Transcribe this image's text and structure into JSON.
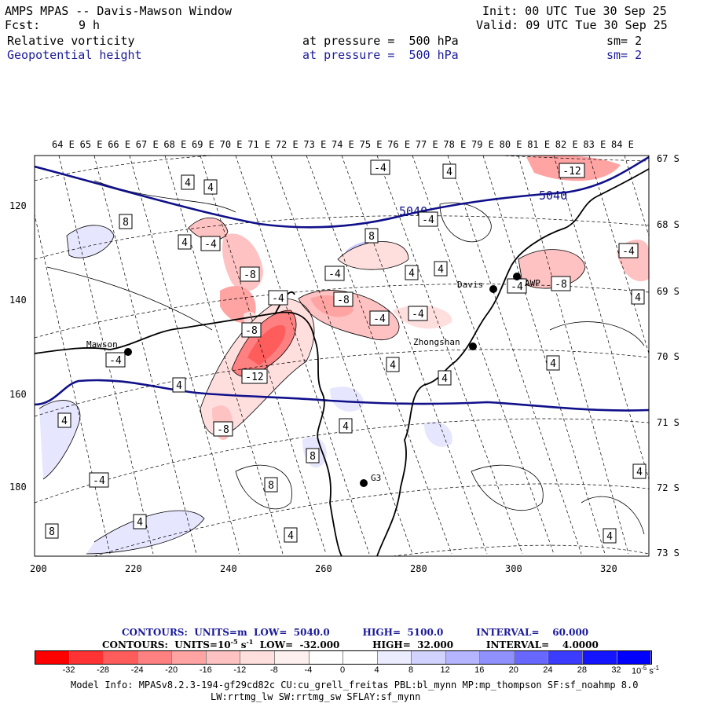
{
  "header": {
    "title": "AMPS MPAS -- Davis-Mawson Window",
    "init": "Init: 00 UTC Tue 30 Sep 25",
    "fcst_label": "Fcst:",
    "fcst_value": "9 h",
    "valid": "Valid: 09 UTC Tue 30 Sep 25",
    "field1": {
      "name": "Relative vorticity",
      "pressure": "at pressure =  500 hPa",
      "sm": "sm= 2"
    },
    "field2": {
      "name": "Geopotential height",
      "pressure": "at pressure =  500 hPa",
      "sm": "sm= 2"
    }
  },
  "map": {
    "top_ticks": [
      "64 E",
      "65 E",
      "66 E",
      "67 E",
      "68 E",
      "69 E",
      "70 E",
      "71 E",
      "72 E",
      "73 E",
      "74 E",
      "75 E",
      "76 E",
      "77 E",
      "78 E",
      "79 E",
      "80 E",
      "81 E",
      "82 E",
      "83 E",
      "84 E"
    ],
    "right_ticks": [
      "67 S",
      "68 S",
      "69 S",
      "70 S",
      "71 S",
      "72 S",
      "73 S"
    ],
    "left_ticks": [
      "120",
      "140",
      "160",
      "180"
    ],
    "bottom_ticks": [
      "200",
      "220",
      "240",
      "260",
      "280",
      "300",
      "320"
    ],
    "stations": [
      {
        "name": "Mawson"
      },
      {
        "name": "Davis"
      },
      {
        "name": "AWP"
      },
      {
        "name": "Zhongshan"
      },
      {
        "name": "G3"
      }
    ],
    "height_labels": [
      "5040",
      "5040"
    ],
    "vort_labels": [
      "-4",
      "4",
      "4",
      "4",
      "-12",
      "8",
      "4",
      "-4",
      "-4",
      "8",
      "-4",
      "4",
      "4",
      "-4",
      "-8",
      "-8",
      "-4",
      "-8",
      "-4",
      "-8",
      "-4",
      "-4",
      "-4",
      "4",
      "4",
      "-12",
      "4",
      "4",
      "4",
      "-8",
      "4",
      "8",
      "-4",
      "8",
      "4",
      "4",
      "8",
      "4",
      "4",
      "4"
    ]
  },
  "footer": {
    "contours1": "CONTOURS:  UNITS=m  LOW=  5040.0          HIGH=  5100.0          INTERVAL=    60.000",
    "contours2_a": "CONTOURS:  UNITS=10",
    "contours2_exp": "-5",
    "contours2_b": " s",
    "contours2_exp2": "-1",
    "contours2_c": "  LOW=  -32.000          HIGH=  32.000          INTERVAL=    4.0000",
    "colorbar": {
      "colors": [
        "#ff0000",
        "#ff3333",
        "#ff5c5c",
        "#ff8080",
        "#ffa3a3",
        "#ffc2c2",
        "#ffdede",
        "#fff0f0",
        "#ffffff",
        "#ffffff",
        "#ececff",
        "#d2d2ff",
        "#b4b4ff",
        "#9090ff",
        "#6868ff",
        "#3c3cff",
        "#1414ff",
        "#0000ff"
      ],
      "labels": [
        "-32",
        "-28",
        "-24",
        "-20",
        "-16",
        "-12",
        "-8",
        "-4",
        "0",
        "4",
        "8",
        "12",
        "16",
        "20",
        "24",
        "28",
        "32"
      ],
      "unit": "10",
      "unit_exp": "-5",
      "unit_b": " s",
      "unit_exp2": "-1"
    },
    "model_info_1": "Model Info: MPASv8.2.3-194-gf29cd82c CU:cu_grell_freitas PBL:bl_mynn MP:mp_thompson SF:sf_noahmp 8.0",
    "model_info_2": "LW:rrtmg_lw SW:rrtmg_sw SFLAY:sf_mynn"
  }
}
